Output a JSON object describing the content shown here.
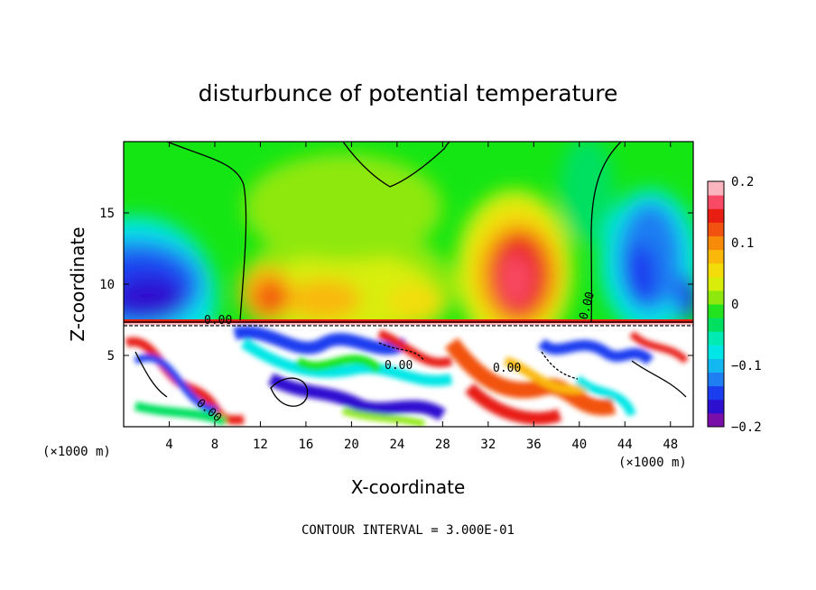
{
  "chart_data": {
    "type": "heatmap",
    "title": "disturbunce of potential temperature",
    "xlabel": "X-coordinate",
    "ylabel": "Z-coordinate",
    "x_unit_label_left": "(×1000 m)",
    "x_unit_label_right": "(×1000 m)",
    "xlim": [
      0,
      50
    ],
    "ylim": [
      0,
      20
    ],
    "x_ticks": [
      "4",
      "8",
      "12",
      "16",
      "20",
      "24",
      "28",
      "32",
      "36",
      "40",
      "44",
      "48"
    ],
    "y_ticks": [
      "5",
      "10",
      "15"
    ],
    "colorbar": {
      "min": -0.2,
      "max": 0.2,
      "tick_labels": [
        "0.2",
        "0.1",
        "0",
        "−0.1",
        "−0.2"
      ],
      "colors": [
        "#7a0ea8",
        "#2d0fd0",
        "#1b3df0",
        "#1e7ef2",
        "#13b8f0",
        "#00e6e6",
        "#00ebb4",
        "#00e060",
        "#22e31e",
        "#8ee80e",
        "#d8ee0a",
        "#f4dc0a",
        "#f9b80a",
        "#f88a0a",
        "#f2520f",
        "#e81e12",
        "#f84a64",
        "#fab4be"
      ]
    },
    "contour_labels": [
      "0.00",
      "0.00",
      "0.00",
      "0.00",
      "0.00"
    ],
    "footnote": "CONTOUR INTERVAL = 3.000E-01",
    "field_description": {
      "upper_layer_z_range": [
        7.5,
        20
      ],
      "lower_layer_z_range": [
        0,
        7.5
      ],
      "warm_anomalies_x": [
        34,
        22,
        10
      ],
      "cold_anomalies_x": [
        3,
        47,
        44
      ]
    }
  }
}
